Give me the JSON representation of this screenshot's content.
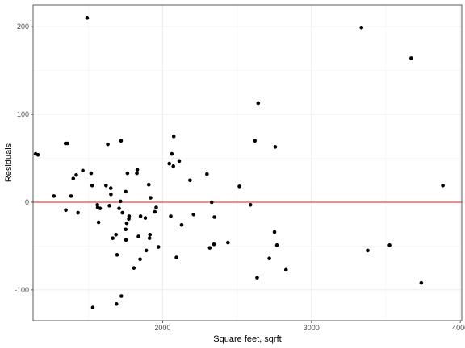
{
  "chart_data": {
    "type": "scatter",
    "title": "",
    "xlabel": "Square feet, sqrft",
    "ylabel": "Residuals",
    "xlim": [
      1130,
      4010
    ],
    "ylim": [
      -135,
      225
    ],
    "x_ticks": [
      2000,
      3000,
      4000
    ],
    "x_tick_labels": [
      "2000",
      "3000",
      "4000"
    ],
    "y_ticks": [
      -100,
      0,
      100,
      200
    ],
    "y_tick_labels": [
      "-100",
      "0",
      "100",
      "200"
    ],
    "grid": true,
    "reference_line": {
      "y": 0,
      "color": "#e31a1c"
    },
    "point_color": "#000000",
    "points": [
      {
        "x": 1147,
        "y": 55
      },
      {
        "x": 1163,
        "y": 54
      },
      {
        "x": 1270,
        "y": 7
      },
      {
        "x": 1348,
        "y": 67
      },
      {
        "x": 1361,
        "y": 67
      },
      {
        "x": 1350,
        "y": -9
      },
      {
        "x": 1385,
        "y": 7
      },
      {
        "x": 1400,
        "y": 27
      },
      {
        "x": 1420,
        "y": 31
      },
      {
        "x": 1432,
        "y": -12
      },
      {
        "x": 1464,
        "y": 36
      },
      {
        "x": 1493,
        "y": 210
      },
      {
        "x": 1520,
        "y": 33
      },
      {
        "x": 1527,
        "y": 19
      },
      {
        "x": 1531,
        "y": -120
      },
      {
        "x": 1562,
        "y": -3
      },
      {
        "x": 1564,
        "y": -6
      },
      {
        "x": 1570,
        "y": -23
      },
      {
        "x": 1580,
        "y": -7
      },
      {
        "x": 1620,
        "y": 19
      },
      {
        "x": 1632,
        "y": 66
      },
      {
        "x": 1643,
        "y": -4
      },
      {
        "x": 1652,
        "y": 16
      },
      {
        "x": 1653,
        "y": 9
      },
      {
        "x": 1665,
        "y": -41
      },
      {
        "x": 1687,
        "y": -37
      },
      {
        "x": 1690,
        "y": -116
      },
      {
        "x": 1694,
        "y": -60
      },
      {
        "x": 1708,
        "y": -7
      },
      {
        "x": 1717,
        "y": 1
      },
      {
        "x": 1721,
        "y": 70
      },
      {
        "x": 1723,
        "y": -107
      },
      {
        "x": 1730,
        "y": -12
      },
      {
        "x": 1752,
        "y": 12
      },
      {
        "x": 1752,
        "y": -31
      },
      {
        "x": 1754,
        "y": -43
      },
      {
        "x": 1759,
        "y": -24
      },
      {
        "x": 1764,
        "y": 33
      },
      {
        "x": 1773,
        "y": -19
      },
      {
        "x": 1775,
        "y": -16
      },
      {
        "x": 1807,
        "y": -75
      },
      {
        "x": 1827,
        "y": 33
      },
      {
        "x": 1830,
        "y": 37
      },
      {
        "x": 1838,
        "y": -39
      },
      {
        "x": 1849,
        "y": -65
      },
      {
        "x": 1852,
        "y": -16
      },
      {
        "x": 1884,
        "y": -18
      },
      {
        "x": 1890,
        "y": -55
      },
      {
        "x": 1907,
        "y": 20
      },
      {
        "x": 1912,
        "y": -41
      },
      {
        "x": 1915,
        "y": -37
      },
      {
        "x": 1919,
        "y": 5
      },
      {
        "x": 1948,
        "y": -11
      },
      {
        "x": 1957,
        "y": -6
      },
      {
        "x": 1972,
        "y": -51
      },
      {
        "x": 2045,
        "y": 44
      },
      {
        "x": 2055,
        "y": -16
      },
      {
        "x": 2062,
        "y": 55
      },
      {
        "x": 2072,
        "y": 41
      },
      {
        "x": 2075,
        "y": 75
      },
      {
        "x": 2093,
        "y": -63
      },
      {
        "x": 2112,
        "y": 47
      },
      {
        "x": 2128,
        "y": -26
      },
      {
        "x": 2184,
        "y": 25
      },
      {
        "x": 2208,
        "y": -14
      },
      {
        "x": 2298,
        "y": 32
      },
      {
        "x": 2317,
        "y": -52
      },
      {
        "x": 2330,
        "y": 0
      },
      {
        "x": 2345,
        "y": -48
      },
      {
        "x": 2348,
        "y": -17
      },
      {
        "x": 2439,
        "y": -46
      },
      {
        "x": 2516,
        "y": 18
      },
      {
        "x": 2590,
        "y": -3
      },
      {
        "x": 2620,
        "y": 70
      },
      {
        "x": 2635,
        "y": -86
      },
      {
        "x": 2642,
        "y": 113
      },
      {
        "x": 2717,
        "y": -64
      },
      {
        "x": 2752,
        "y": -34
      },
      {
        "x": 2757,
        "y": 63
      },
      {
        "x": 2768,
        "y": -49
      },
      {
        "x": 2829,
        "y": -77
      },
      {
        "x": 3336,
        "y": 199
      },
      {
        "x": 3378,
        "y": -55
      },
      {
        "x": 3525,
        "y": -49
      },
      {
        "x": 3670,
        "y": 164
      },
      {
        "x": 3738,
        "y": -92
      },
      {
        "x": 3883,
        "y": 19
      }
    ]
  }
}
